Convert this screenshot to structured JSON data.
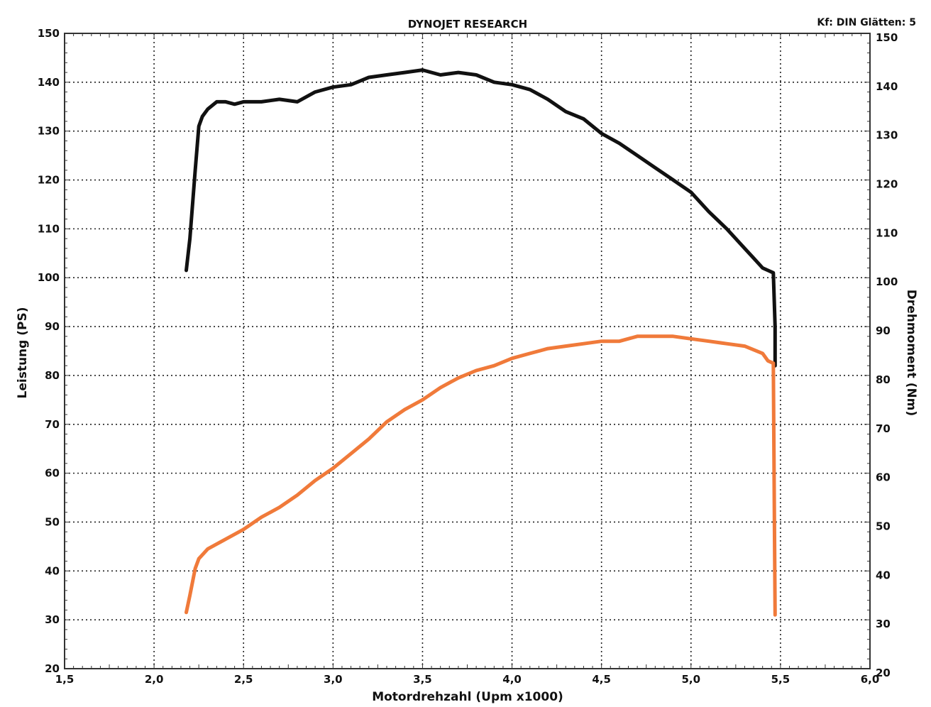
{
  "chart_data": {
    "type": "line",
    "title": "DYNOJET RESEARCH",
    "settings_text": "Kf: DIN  Glätten: 5",
    "xlabel": "Motordrehzahl (Upm x1000)",
    "ylabel_left": "Leistung (PS)",
    "ylabel_right": "Drehmoment (Nm)",
    "xlim": [
      1.5,
      6.0
    ],
    "ylim": [
      20,
      150
    ],
    "x_ticks": [
      "1,5",
      "2,0",
      "2,5",
      "3,0",
      "3,5",
      "4,0",
      "4,5",
      "5,0",
      "5,5",
      "6,0"
    ],
    "y_ticks": [
      "20",
      "30",
      "40",
      "50",
      "60",
      "70",
      "80",
      "90",
      "100",
      "110",
      "120",
      "130",
      "140",
      "150"
    ],
    "grid": true,
    "colors": {
      "torque": "#111111",
      "power": "#f07a3a"
    },
    "series": [
      {
        "key": "torque",
        "axis": "right",
        "x": [
          2.18,
          2.2,
          2.23,
          2.25,
          2.27,
          2.3,
          2.35,
          2.4,
          2.45,
          2.5,
          2.6,
          2.7,
          2.8,
          2.9,
          3.0,
          3.1,
          3.2,
          3.3,
          3.4,
          3.5,
          3.6,
          3.7,
          3.8,
          3.9,
          4.0,
          4.1,
          4.2,
          4.3,
          4.4,
          4.5,
          4.6,
          4.7,
          4.8,
          4.9,
          5.0,
          5.1,
          5.2,
          5.3,
          5.35,
          5.4,
          5.43,
          5.46,
          5.47,
          5.47
        ],
        "values": [
          101.5,
          108,
          122,
          131,
          133,
          134.5,
          136,
          136,
          135.5,
          136,
          136,
          136.5,
          136,
          138,
          139,
          139.5,
          141,
          141.5,
          142,
          142.5,
          141.5,
          142,
          141.5,
          140,
          139.5,
          138.5,
          136.5,
          134,
          132.5,
          129.5,
          127.5,
          125,
          122.5,
          120,
          117.5,
          113.5,
          110,
          106,
          104,
          102,
          101.5,
          101,
          90,
          82
        ]
      },
      {
        "key": "power",
        "axis": "left",
        "x": [
          2.18,
          2.2,
          2.23,
          2.25,
          2.3,
          2.35,
          2.4,
          2.5,
          2.6,
          2.7,
          2.8,
          2.9,
          3.0,
          3.1,
          3.2,
          3.3,
          3.4,
          3.5,
          3.6,
          3.7,
          3.8,
          3.9,
          4.0,
          4.1,
          4.2,
          4.3,
          4.4,
          4.5,
          4.6,
          4.7,
          4.8,
          4.9,
          5.0,
          5.1,
          5.2,
          5.3,
          5.4,
          5.43,
          5.46,
          5.465,
          5.47
        ],
        "values": [
          31.5,
          35,
          40.5,
          42.5,
          44.5,
          45.5,
          46.5,
          48.5,
          51,
          53,
          55.5,
          58.5,
          61,
          64,
          67,
          70.5,
          73,
          75,
          77.5,
          79.5,
          81,
          82,
          83.5,
          84.5,
          85.5,
          86,
          86.5,
          87,
          87,
          88,
          88,
          88,
          87.5,
          87,
          86.5,
          86,
          84.5,
          83,
          82.5,
          55,
          31
        ]
      }
    ]
  }
}
